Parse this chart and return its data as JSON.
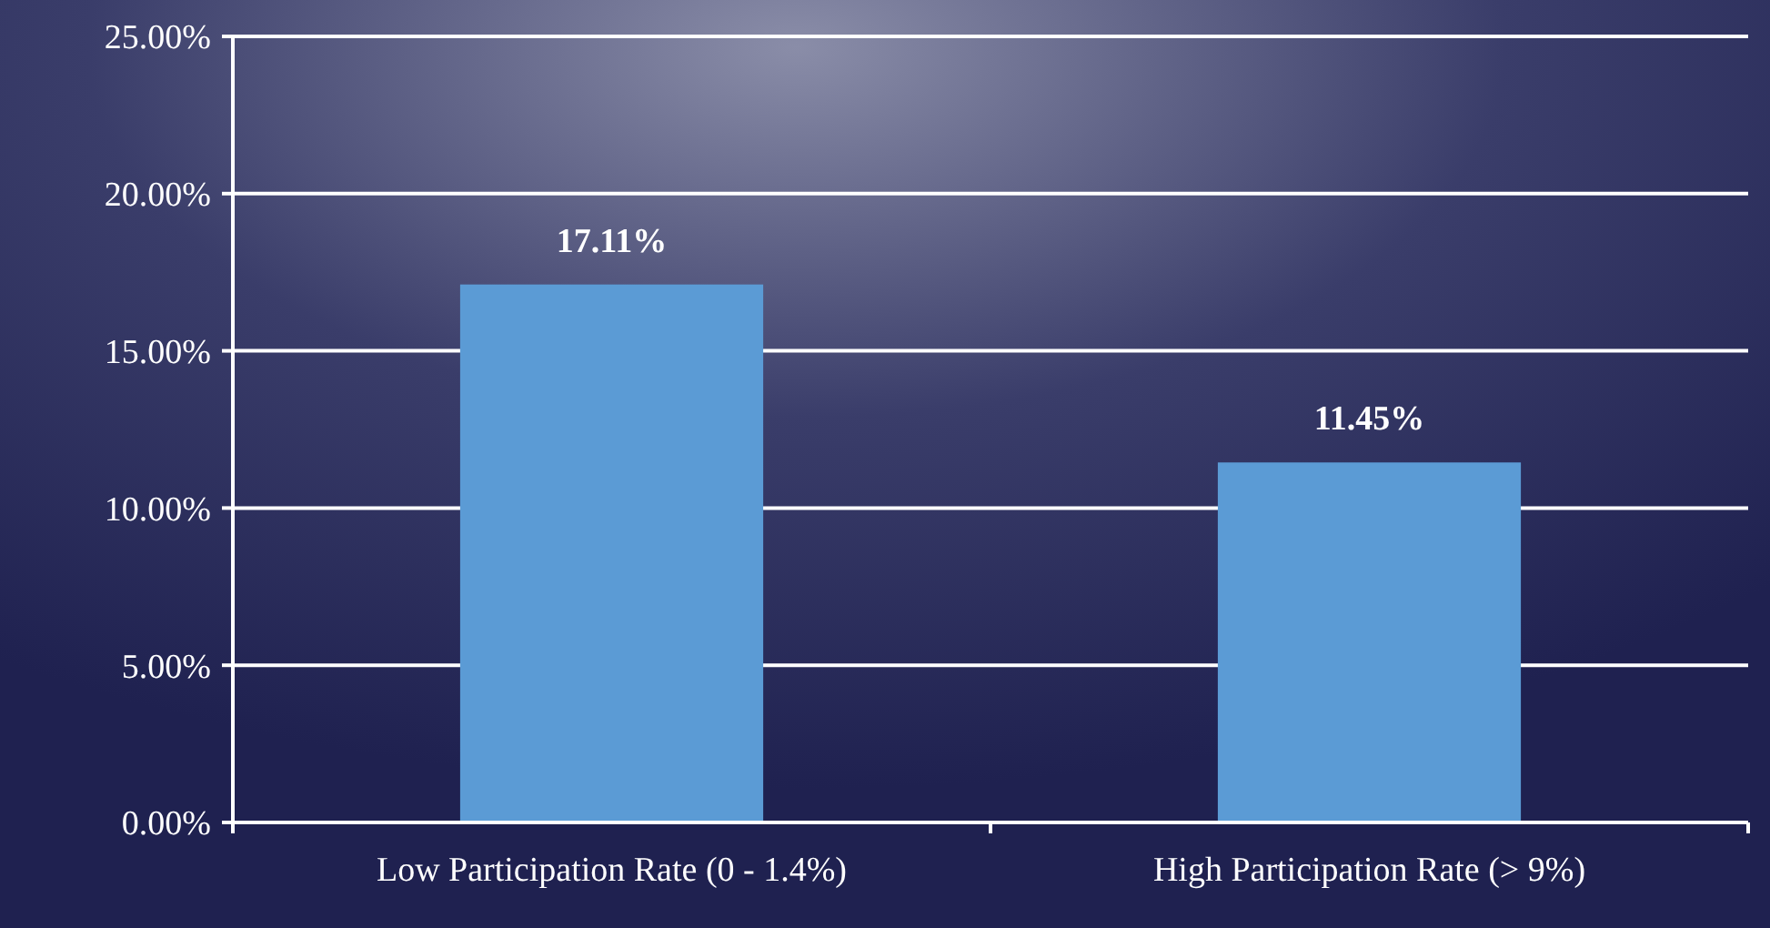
{
  "chart_data": {
    "type": "bar",
    "categories": [
      "Low Participation Rate (0 - 1.4%)",
      "High Participation Rate (> 9%)"
    ],
    "values": [
      17.11,
      11.45
    ],
    "value_labels": [
      "17.11%",
      "11.45%"
    ],
    "color": "#5b9bd5",
    "ylim": [
      0,
      25
    ],
    "yticks": [
      {
        "value": 0,
        "label": "0.00%"
      },
      {
        "value": 5,
        "label": "5.00%"
      },
      {
        "value": 10,
        "label": "10.00%"
      },
      {
        "value": 15,
        "label": "15.00%"
      },
      {
        "value": 20,
        "label": "20.00%"
      },
      {
        "value": 25,
        "label": "25.00%"
      }
    ],
    "grid": "y"
  }
}
